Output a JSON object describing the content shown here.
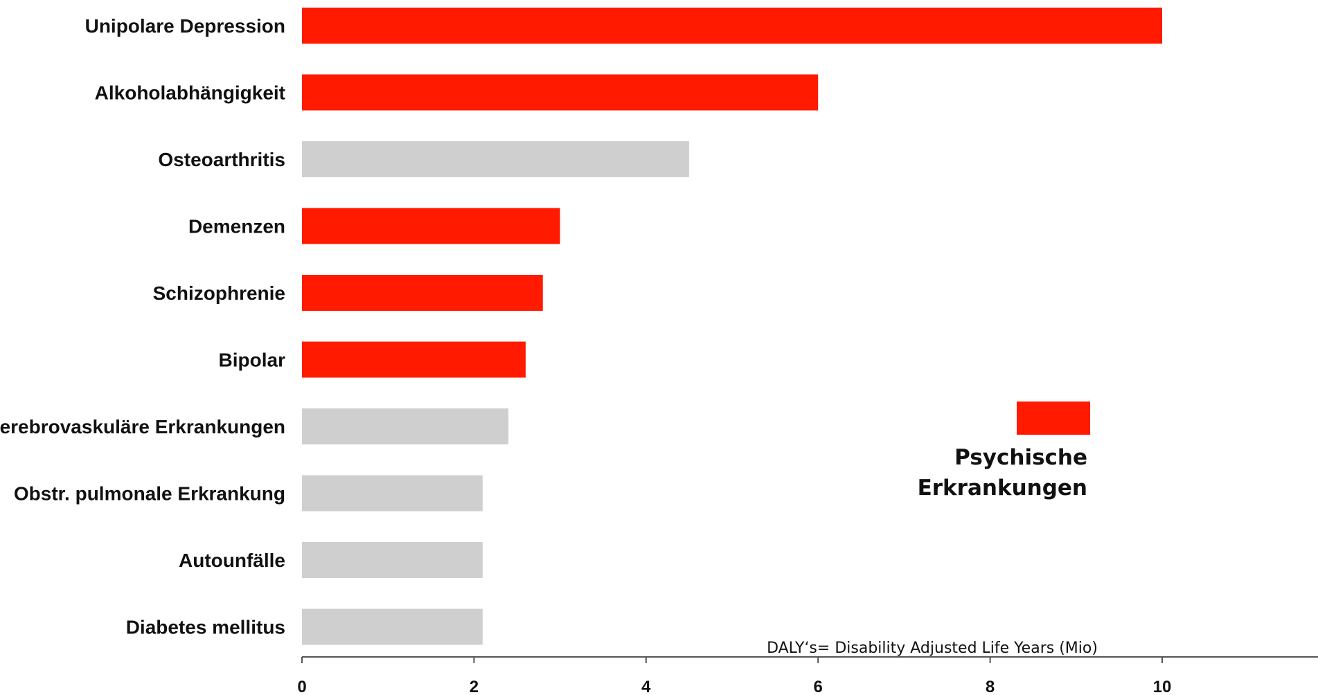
{
  "chart_data": {
    "type": "bar",
    "orientation": "horizontal",
    "categories": [
      "Unipolare Depression",
      "Alkoholabhängigkeit",
      "Osteoarthritis",
      "Demenzen",
      "Schizophrenie",
      "Bipolar",
      "Zerebrovaskuläre Erkrankungen",
      "Obstr. pulmonale Erkrankung",
      "Autounfälle",
      "Diabetes mellitus"
    ],
    "values": [
      10,
      6,
      4.5,
      3,
      2.8,
      2.6,
      2.4,
      2.1,
      2.1,
      2.1
    ],
    "psychisch": [
      true,
      true,
      false,
      true,
      true,
      true,
      false,
      false,
      false,
      false
    ],
    "colors": {
      "psychisch": "#ff1a00",
      "other": "#cfcfcf",
      "axis": "#555555"
    },
    "xlim": [
      0,
      11.7
    ],
    "xticks": [
      "0",
      "2",
      "4",
      "6",
      "8",
      "10"
    ],
    "xlabel": "DALY‘s= Disability Adjusted Life Years (Mio)",
    "legend": {
      "placement": "right",
      "entries": [
        {
          "line1": "Psychische",
          "line2": "Erkrankungen",
          "color": "#ff1a00"
        }
      ]
    },
    "grid": false
  }
}
